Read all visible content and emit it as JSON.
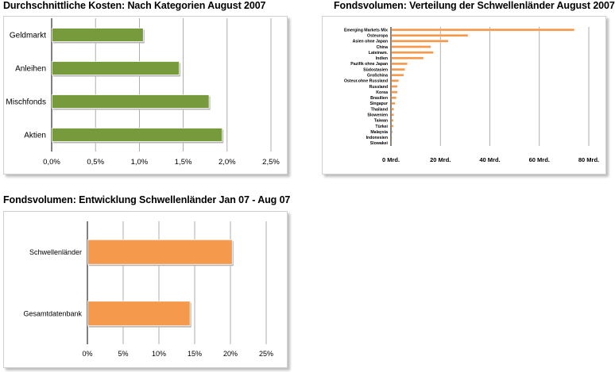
{
  "chart_data": [
    {
      "id": "c1",
      "type": "bar",
      "orientation": "horizontal",
      "title": "Durchschnittliche Kosten: Nach Kategorien August 2007",
      "categories": [
        "Geldmarkt",
        "Anleihen",
        "Mischfonds",
        "Aktien"
      ],
      "values": [
        1.04,
        1.45,
        1.79,
        1.94
      ],
      "xlim": [
        0,
        2.5
      ],
      "ticks": [
        0,
        0.5,
        1.0,
        1.5,
        2.0,
        2.5
      ],
      "tick_labels": [
        "0,0%",
        "0,5%",
        "1,0%",
        "1,5%",
        "2,0%",
        "2,5%"
      ],
      "xlabel": "",
      "ylabel": "",
      "color": "#779a3c",
      "grid": true
    },
    {
      "id": "c2",
      "type": "bar",
      "orientation": "horizontal",
      "title": "Fondsvolumen: Verteilung der Schwellenländer August 2007",
      "categories": [
        "Emerging Markets Mix",
        "Osteuropa",
        "Asien ohne Japan",
        "China",
        "Lateinam.",
        "Indien",
        "Pazifik ohne Japan",
        "Südostasien",
        "Großchina",
        "Osteur.ohne Russland",
        "Russland",
        "Korea",
        "Brasilien",
        "Singapur",
        "Thailand",
        "Slowenien",
        "Taiwan",
        "Türkei",
        "Malaysia",
        "Indonesien",
        "Slowakei"
      ],
      "values": [
        74,
        31,
        23,
        16,
        17,
        13,
        6.5,
        5.5,
        5,
        3,
        2.5,
        2.5,
        2,
        1.5,
        1,
        1,
        0.8,
        0.8,
        0.5,
        0.3,
        0.2
      ],
      "xlim": [
        0,
        80
      ],
      "ticks": [
        0,
        20,
        40,
        60,
        80
      ],
      "tick_labels": [
        "0 Mrd.",
        "20 Mrd.",
        "40 Mrd.",
        "60 Mrd.",
        "80 Mrd."
      ],
      "xlabel": "",
      "ylabel": "",
      "color": "#f59a4c",
      "grid": true
    },
    {
      "id": "c3",
      "type": "bar",
      "orientation": "horizontal",
      "title": "Fondsvolumen: Entwicklung Schwellenländer Jan 07 - Aug 07",
      "categories": [
        "Schwellenländer",
        "Gesamtdatenbank"
      ],
      "values": [
        20.2,
        14.3
      ],
      "xlim": [
        0,
        25
      ],
      "ticks": [
        0,
        5,
        10,
        15,
        20,
        25
      ],
      "tick_labels": [
        "0%",
        "5%",
        "10%",
        "15%",
        "20%",
        "25%"
      ],
      "xlabel": "",
      "ylabel": "",
      "color": "#f59a4c",
      "grid": true
    }
  ]
}
